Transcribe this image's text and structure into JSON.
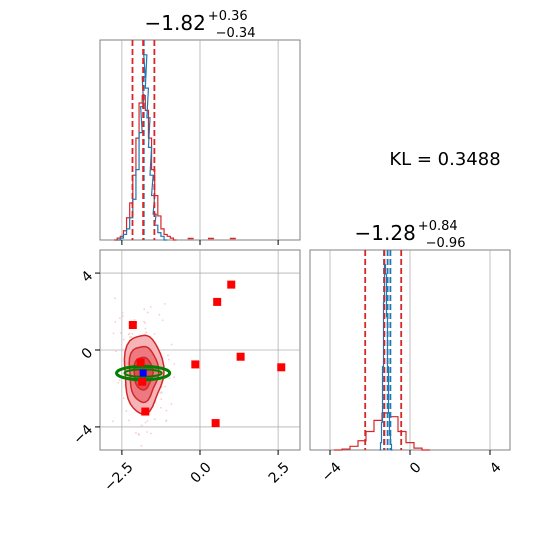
{
  "chart_data": {
    "type": "corner",
    "grid": true,
    "kl_label": "KL = 0.3488",
    "colors": {
      "posterior_a": "#1f77b4",
      "posterior_b": "#d62728",
      "markers": "#ff0000",
      "ellipse": "#008000",
      "center_marker": "#0000ff",
      "grid": "#b0b0b0"
    },
    "panels": [
      {
        "id": "hist_param1",
        "kind": "histogram",
        "title": {
          "main": "−1.82",
          "sup": "+0.36",
          "sub": "−0.34"
        },
        "xlim": [
          -3.2,
          3.2
        ],
        "xticks": [
          -2.5,
          0.0,
          2.5
        ],
        "vlines_red": [
          -2.16,
          -1.82,
          -1.46
        ],
        "vlines_blue": [
          -1.8
        ],
        "series_blue": {
          "bins_x": [
            -2.6,
            -2.5,
            -2.4,
            -2.3,
            -2.2,
            -2.1,
            -2.0,
            -1.9,
            -1.85,
            -1.8,
            -1.75,
            -1.7,
            -1.65,
            -1.6,
            -1.55,
            -1.5,
            -1.45,
            -1.4,
            -1.3,
            -1.2,
            -1.1
          ],
          "density": [
            0.0,
            0.01,
            0.03,
            0.06,
            0.12,
            0.22,
            0.38,
            0.58,
            0.72,
            0.88,
            1.0,
            0.82,
            0.66,
            0.5,
            0.35,
            0.24,
            0.14,
            0.08,
            0.04,
            0.02,
            0.0
          ]
        },
        "series_red": {
          "bins_x": [
            -2.7,
            -2.6,
            -2.5,
            -2.4,
            -2.3,
            -2.2,
            -2.1,
            -2.0,
            -1.9,
            -1.8,
            -1.7,
            -1.6,
            -1.5,
            -1.4,
            -1.3,
            -1.2,
            -1.1,
            -1.0,
            -0.9,
            -0.8
          ],
          "density": [
            0.0,
            0.01,
            0.02,
            0.05,
            0.12,
            0.2,
            0.35,
            0.55,
            0.74,
            0.78,
            0.7,
            0.55,
            0.38,
            0.24,
            0.13,
            0.06,
            0.03,
            0.02,
            0.01,
            0.0
          ]
        },
        "outliers_red": [
          -0.3,
          0.35,
          1.05
        ]
      },
      {
        "id": "scatter_param1_param2",
        "kind": "2d",
        "xlim": [
          -3.2,
          3.2
        ],
        "ylim": [
          -5.2,
          5.2
        ],
        "xticks": [
          -2.5,
          0.0,
          2.5
        ],
        "yticks": [
          -4,
          0,
          4
        ],
        "contour_center": [
          -1.82,
          -1.2
        ],
        "ellipse": {
          "cx": -1.82,
          "cy": -1.2,
          "rx": 0.85,
          "ry": 0.35
        },
        "markers_red": [
          [
            1.0,
            3.4
          ],
          [
            0.55,
            2.5
          ],
          [
            -2.15,
            1.3
          ],
          [
            -1.9,
            -0.65
          ],
          [
            -0.15,
            -0.75
          ],
          [
            1.3,
            -0.35
          ],
          [
            2.6,
            -0.9
          ],
          [
            -1.85,
            -1.65
          ],
          [
            -1.75,
            -3.2
          ],
          [
            0.5,
            -3.8
          ]
        ],
        "marker_blue": [
          -1.82,
          -1.2
        ]
      },
      {
        "id": "hist_param2",
        "kind": "histogram",
        "title": {
          "main": "−1.28",
          "sub": "−0.96",
          "sup": "+0.84"
        },
        "xlim": [
          -5.0,
          5.0
        ],
        "xticks": [
          -4,
          0,
          4
        ],
        "vlines_red": [
          -2.24,
          -1.28,
          -0.44
        ],
        "vlines_blue": [
          -1.3,
          -1.12,
          -0.98
        ],
        "series_blue": {
          "bins_x": [
            -1.5,
            -1.45,
            -1.4,
            -1.35,
            -1.3,
            -1.25,
            -1.2,
            -1.15,
            -1.1,
            -1.05,
            -1.0,
            -0.95,
            -0.9
          ],
          "density": [
            0.0,
            0.04,
            0.15,
            0.45,
            0.8,
            1.0,
            0.95,
            0.72,
            0.45,
            0.2,
            0.08,
            0.03,
            0.0
          ]
        },
        "series_red": {
          "bins_x": [
            -3.6,
            -3.2,
            -2.8,
            -2.4,
            -2.0,
            -1.6,
            -1.2,
            -0.8,
            -0.4,
            0.0,
            0.4,
            0.8
          ],
          "density": [
            0.0,
            0.005,
            0.02,
            0.05,
            0.1,
            0.16,
            0.2,
            0.18,
            0.1,
            0.04,
            0.01,
            0.0
          ]
        }
      }
    ]
  }
}
